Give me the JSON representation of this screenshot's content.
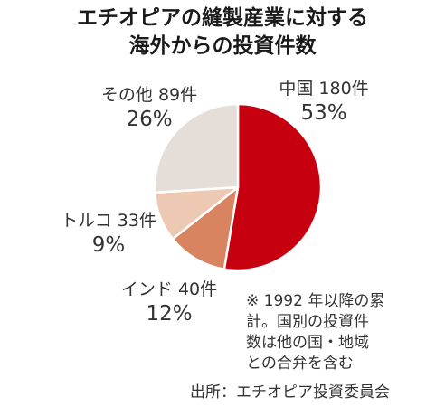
{
  "title_lines": [
    "エチオピアの縫製産業に対する",
    "海外からの投資件数"
  ],
  "chart_data": {
    "type": "pie",
    "title": "エチオピアの縫製産業に対する海外からの投資件数",
    "slices": [
      {
        "label": "中国",
        "count_text": "180件",
        "value": 180,
        "percent": 53,
        "pct_text": "53%",
        "color": "#c6000f"
      },
      {
        "label": "インド",
        "count_text": "40件",
        "value": 40,
        "percent": 12,
        "pct_text": "12%",
        "color": "#d98461"
      },
      {
        "label": "トルコ",
        "count_text": "33件",
        "value": 33,
        "percent": 9,
        "pct_text": "9%",
        "color": "#edc9b3"
      },
      {
        "label": "その他",
        "count_text": "89件",
        "value": 89,
        "percent": 26,
        "pct_text": "26%",
        "color": "#e5ddd7"
      }
    ]
  },
  "note_lines": [
    "※ 1992 年以降の累",
    "計。国別の投資件",
    "数は他の国・地域",
    "との合弁を含む"
  ],
  "source": "出所：エチオピア投資委員会"
}
